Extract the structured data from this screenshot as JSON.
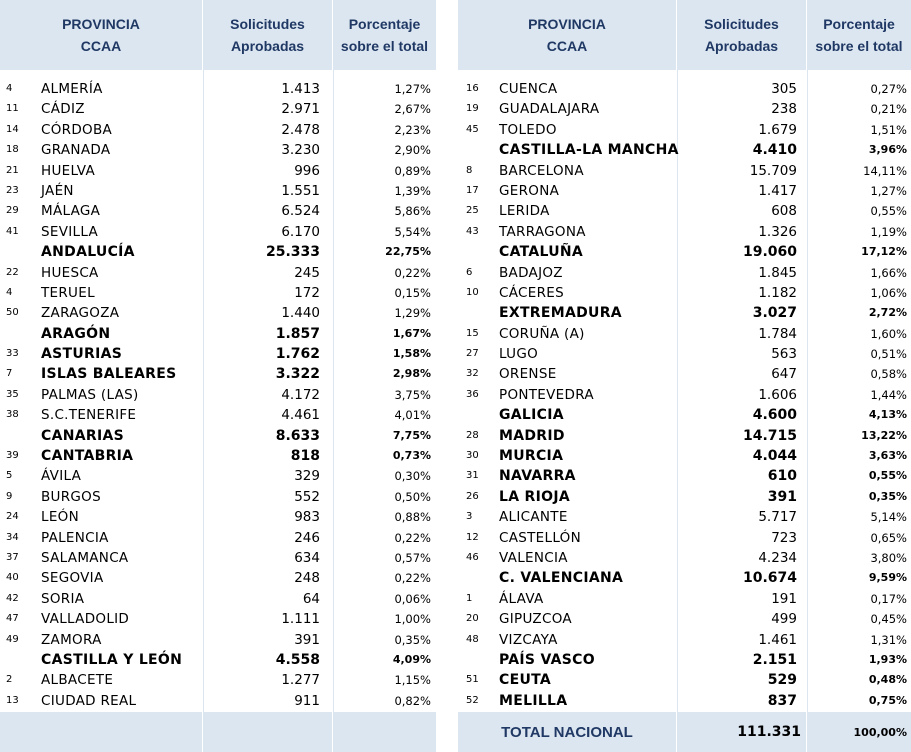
{
  "headers": {
    "province": "PROVINCIA",
    "ccaa": "CCAA",
    "solicitudes": "Solicitudes",
    "aprobadas": "Aprobadas",
    "porcentaje": "Porcentaje",
    "sobre_total": "sobre el total"
  },
  "left_rows": [
    {
      "num": "4",
      "name": "ALMERÍA",
      "value": "1.413",
      "pct": "1,27%",
      "bold": false
    },
    {
      "num": "11",
      "name": "CÁDIZ",
      "value": "2.971",
      "pct": "2,67%",
      "bold": false
    },
    {
      "num": "14",
      "name": "CÓRDOBA",
      "value": "2.478",
      "pct": "2,23%",
      "bold": false
    },
    {
      "num": "18",
      "name": "GRANADA",
      "value": "3.230",
      "pct": "2,90%",
      "bold": false
    },
    {
      "num": "21",
      "name": "HUELVA",
      "value": "996",
      "pct": "0,89%",
      "bold": false
    },
    {
      "num": "23",
      "name": "JAÉN",
      "value": "1.551",
      "pct": "1,39%",
      "bold": false
    },
    {
      "num": "29",
      "name": "MÁLAGA",
      "value": "6.524",
      "pct": "5,86%",
      "bold": false
    },
    {
      "num": "41",
      "name": "SEVILLA",
      "value": "6.170",
      "pct": "5,54%",
      "bold": false
    },
    {
      "num": "",
      "name": "ANDALUCÍA",
      "value": "25.333",
      "pct": "22,75%",
      "bold": true
    },
    {
      "num": "22",
      "name": "HUESCA",
      "value": "245",
      "pct": "0,22%",
      "bold": false
    },
    {
      "num": "4",
      "name": "TERUEL",
      "value": "172",
      "pct": "0,15%",
      "bold": false
    },
    {
      "num": "50",
      "name": "ZARAGOZA",
      "value": "1.440",
      "pct": "1,29%",
      "bold": false
    },
    {
      "num": "",
      "name": "ARAGÓN",
      "value": "1.857",
      "pct": "1,67%",
      "bold": true
    },
    {
      "num": "33",
      "name": "ASTURIAS",
      "value": "1.762",
      "pct": "1,58%",
      "bold": true
    },
    {
      "num": "7",
      "name": "ISLAS BALEARES",
      "value": "3.322",
      "pct": "2,98%",
      "bold": true
    },
    {
      "num": "35",
      "name": "PALMAS (LAS)",
      "value": "4.172",
      "pct": "3,75%",
      "bold": false
    },
    {
      "num": "38",
      "name": "S.C.TENERIFE",
      "value": "4.461",
      "pct": "4,01%",
      "bold": false
    },
    {
      "num": "",
      "name": "CANARIAS",
      "value": "8.633",
      "pct": "7,75%",
      "bold": true
    },
    {
      "num": "39",
      "name": "CANTABRIA",
      "value": "818",
      "pct": "0,73%",
      "bold": true
    },
    {
      "num": "5",
      "name": "ÁVILA",
      "value": "329",
      "pct": "0,30%",
      "bold": false
    },
    {
      "num": "9",
      "name": "BURGOS",
      "value": "552",
      "pct": "0,50%",
      "bold": false
    },
    {
      "num": "24",
      "name": "LEÓN",
      "value": "983",
      "pct": "0,88%",
      "bold": false
    },
    {
      "num": "34",
      "name": "PALENCIA",
      "value": "246",
      "pct": "0,22%",
      "bold": false
    },
    {
      "num": "37",
      "name": "SALAMANCA",
      "value": "634",
      "pct": "0,57%",
      "bold": false
    },
    {
      "num": "40",
      "name": "SEGOVIA",
      "value": "248",
      "pct": "0,22%",
      "bold": false
    },
    {
      "num": "42",
      "name": "SORIA",
      "value": "64",
      "pct": "0,06%",
      "bold": false
    },
    {
      "num": "47",
      "name": "VALLADOLID",
      "value": "1.111",
      "pct": "1,00%",
      "bold": false
    },
    {
      "num": "49",
      "name": "ZAMORA",
      "value": "391",
      "pct": "0,35%",
      "bold": false
    },
    {
      "num": "",
      "name": "CASTILLA Y LEÓN",
      "value": "4.558",
      "pct": "4,09%",
      "bold": true
    },
    {
      "num": "2",
      "name": "ALBACETE",
      "value": "1.277",
      "pct": "1,15%",
      "bold": false
    },
    {
      "num": "13",
      "name": "CIUDAD REAL",
      "value": "911",
      "pct": "0,82%",
      "bold": false
    }
  ],
  "right_rows": [
    {
      "num": "16",
      "name": "CUENCA",
      "value": "305",
      "pct": "0,27%",
      "bold": false
    },
    {
      "num": "19",
      "name": "GUADALAJARA",
      "value": "238",
      "pct": "0,21%",
      "bold": false
    },
    {
      "num": "45",
      "name": "TOLEDO",
      "value": "1.679",
      "pct": "1,51%",
      "bold": false
    },
    {
      "num": "",
      "name": "CASTILLA-LA MANCHA",
      "value": "4.410",
      "pct": "3,96%",
      "bold": true
    },
    {
      "num": "8",
      "name": "BARCELONA",
      "value": "15.709",
      "pct": "14,11%",
      "bold": false
    },
    {
      "num": "17",
      "name": "GERONA",
      "value": "1.417",
      "pct": "1,27%",
      "bold": false
    },
    {
      "num": "25",
      "name": "LERIDA",
      "value": "608",
      "pct": "0,55%",
      "bold": false
    },
    {
      "num": "43",
      "name": "TARRAGONA",
      "value": "1.326",
      "pct": "1,19%",
      "bold": false
    },
    {
      "num": "",
      "name": "CATALUÑA",
      "value": "19.060",
      "pct": "17,12%",
      "bold": true
    },
    {
      "num": "6",
      "name": "BADAJOZ",
      "value": "1.845",
      "pct": "1,66%",
      "bold": false
    },
    {
      "num": "10",
      "name": "CÁCERES",
      "value": "1.182",
      "pct": "1,06%",
      "bold": false
    },
    {
      "num": "",
      "name": "EXTREMADURA",
      "value": "3.027",
      "pct": "2,72%",
      "bold": true
    },
    {
      "num": "15",
      "name": "CORUÑA (A)",
      "value": "1.784",
      "pct": "1,60%",
      "bold": false
    },
    {
      "num": "27",
      "name": "LUGO",
      "value": "563",
      "pct": "0,51%",
      "bold": false
    },
    {
      "num": "32",
      "name": "ORENSE",
      "value": "647",
      "pct": "0,58%",
      "bold": false
    },
    {
      "num": "36",
      "name": "PONTEVEDRA",
      "value": "1.606",
      "pct": "1,44%",
      "bold": false
    },
    {
      "num": "",
      "name": "GALICIA",
      "value": "4.600",
      "pct": "4,13%",
      "bold": true
    },
    {
      "num": "28",
      "name": "MADRID",
      "value": "14.715",
      "pct": "13,22%",
      "bold": true
    },
    {
      "num": "30",
      "name": "MURCIA",
      "value": "4.044",
      "pct": "3,63%",
      "bold": true
    },
    {
      "num": "31",
      "name": "NAVARRA",
      "value": "610",
      "pct": "0,55%",
      "bold": true
    },
    {
      "num": "26",
      "name": "LA RIOJA",
      "value": "391",
      "pct": "0,35%",
      "bold": true
    },
    {
      "num": "3",
      "name": "ALICANTE",
      "value": "5.717",
      "pct": "5,14%",
      "bold": false
    },
    {
      "num": "12",
      "name": "CASTELLÓN",
      "value": "723",
      "pct": "0,65%",
      "bold": false
    },
    {
      "num": "46",
      "name": "VALENCIA",
      "value": "4.234",
      "pct": "3,80%",
      "bold": false
    },
    {
      "num": "",
      "name": "C. VALENCIANA",
      "value": "10.674",
      "pct": "9,59%",
      "bold": true
    },
    {
      "num": "1",
      "name": "ÁLAVA",
      "value": "191",
      "pct": "0,17%",
      "bold": false
    },
    {
      "num": "20",
      "name": "GIPUZCOA",
      "value": "499",
      "pct": "0,45%",
      "bold": false
    },
    {
      "num": "48",
      "name": "VIZCAYA",
      "value": "1.461",
      "pct": "1,31%",
      "bold": false
    },
    {
      "num": "",
      "name": "PAÍS VASCO",
      "value": "2.151",
      "pct": "1,93%",
      "bold": true
    },
    {
      "num": "51",
      "name": "CEUTA",
      "value": "529",
      "pct": "0,48%",
      "bold": true
    },
    {
      "num": "52",
      "name": "MELILLA",
      "value": "837",
      "pct": "0,75%",
      "bold": true
    }
  ],
  "total": {
    "label": "TOTAL NACIONAL",
    "value": "111.331",
    "pct": "100,00%"
  }
}
